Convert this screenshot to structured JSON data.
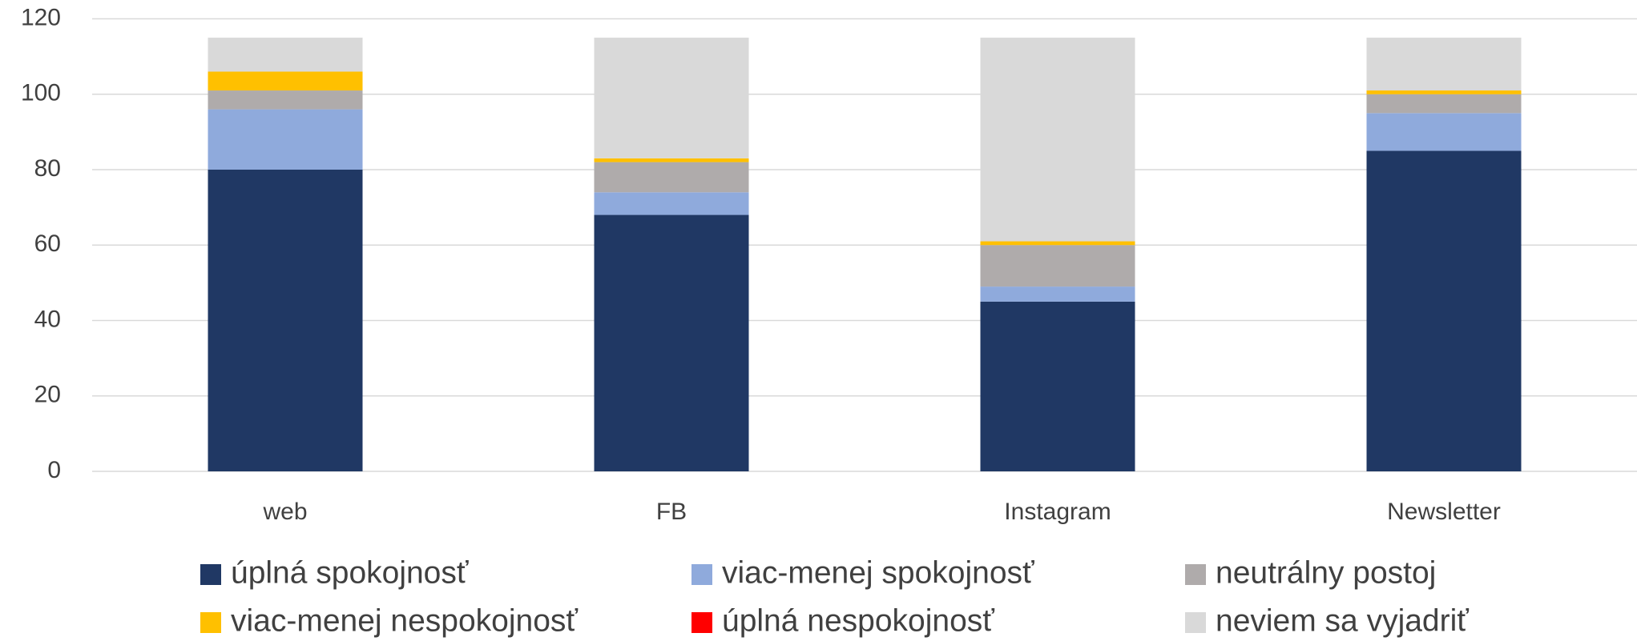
{
  "chart_data": {
    "type": "stacked_bar",
    "categories": [
      "web",
      "FB",
      "Instagram",
      "Newsletter"
    ],
    "series": [
      {
        "name": "úplná spokojnosť",
        "color": "#203864",
        "values": [
          80,
          68,
          45,
          85
        ]
      },
      {
        "name": "viac-menej spokojnosť",
        "color": "#8FAADC",
        "values": [
          16,
          6,
          4,
          10
        ]
      },
      {
        "name": "neutrálny postoj",
        "color": "#AFABAB",
        "values": [
          5,
          8,
          11,
          5
        ]
      },
      {
        "name": "viac-menej nespokojnosť",
        "color": "#FFC000",
        "values": [
          5,
          1,
          1,
          1
        ]
      },
      {
        "name": "úplná nespokojnosť",
        "color": "#FF0000",
        "values": [
          0,
          0,
          0,
          0
        ]
      },
      {
        "name": "neviem sa vyjadriť",
        "color": "#D9D9D9",
        "values": [
          9,
          32,
          54,
          14
        ]
      }
    ],
    "ylim": [
      0,
      120
    ],
    "yticks": [
      0,
      20,
      40,
      60,
      80,
      100,
      120
    ],
    "grid": true,
    "legend": "bottom"
  }
}
